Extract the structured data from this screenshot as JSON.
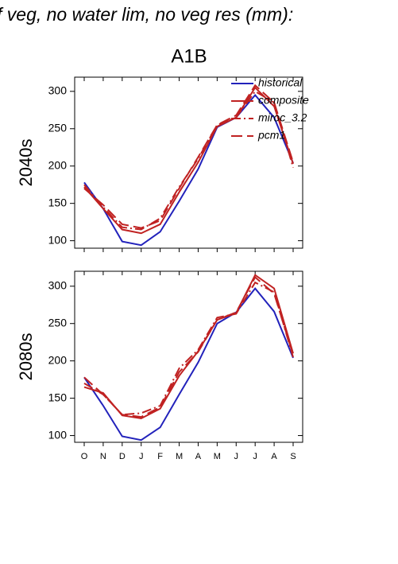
{
  "title": "f veg, no water lim, no veg res (mm):",
  "subtitle": "A1B",
  "chart_data": [
    {
      "type": "line",
      "ylabel": "2040s",
      "xticklabels": false,
      "legend": "upper right",
      "categories": [
        "O",
        "N",
        "D",
        "J",
        "F",
        "M",
        "A",
        "M",
        "J",
        "J",
        "A",
        "S"
      ],
      "ylim": [
        90,
        319
      ],
      "yticks": [
        100,
        150,
        200,
        250,
        300
      ],
      "series": [
        {
          "name": "historical",
          "color": "#2222bb",
          "dash": "solid",
          "values": [
            178,
            143,
            99,
            94,
            112,
            153,
            196,
            252,
            265,
            295,
            265,
            204
          ]
        },
        {
          "name": "composite",
          "color": "#c02222",
          "dash": "solid",
          "values": [
            172,
            143,
            115,
            110,
            122,
            165,
            205,
            253,
            265,
            305,
            280,
            203
          ]
        },
        {
          "name": "miroc_3.2",
          "color": "#c02222",
          "dash": "dashdot",
          "values": [
            175,
            145,
            118,
            115,
            130,
            172,
            210,
            255,
            265,
            300,
            285,
            198
          ]
        },
        {
          "name": "pcm1",
          "color": "#c02222",
          "dash": "longdash",
          "values": [
            170,
            148,
            122,
            117,
            127,
            170,
            212,
            255,
            268,
            308,
            285,
            205
          ]
        }
      ]
    },
    {
      "type": "line",
      "ylabel": "2080s",
      "xticklabels": true,
      "legend": false,
      "categories": [
        "O",
        "N",
        "D",
        "J",
        "F",
        "M",
        "A",
        "M",
        "J",
        "J",
        "A",
        "S"
      ],
      "ylim": [
        91,
        320
      ],
      "yticks": [
        100,
        150,
        200,
        250,
        300
      ],
      "series": [
        {
          "name": "historical",
          "color": "#2222bb",
          "dash": "solid",
          "values": [
            178,
            140,
            99,
            94,
            111,
            155,
            198,
            250,
            265,
            297,
            266,
            204
          ]
        },
        {
          "name": "composite",
          "color": "#c02222",
          "dash": "solid",
          "values": [
            165,
            157,
            127,
            123,
            136,
            180,
            213,
            255,
            264,
            315,
            297,
            210
          ]
        },
        {
          "name": "miroc_3.2",
          "color": "#c02222",
          "dash": "dashdot",
          "values": [
            170,
            155,
            128,
            130,
            140,
            190,
            215,
            258,
            263,
            305,
            292,
            205
          ]
        },
        {
          "name": "pcm1",
          "color": "#c02222",
          "dash": "longdash",
          "values": [
            178,
            155,
            128,
            125,
            138,
            185,
            212,
            255,
            265,
            312,
            290,
            208
          ]
        }
      ]
    }
  ]
}
